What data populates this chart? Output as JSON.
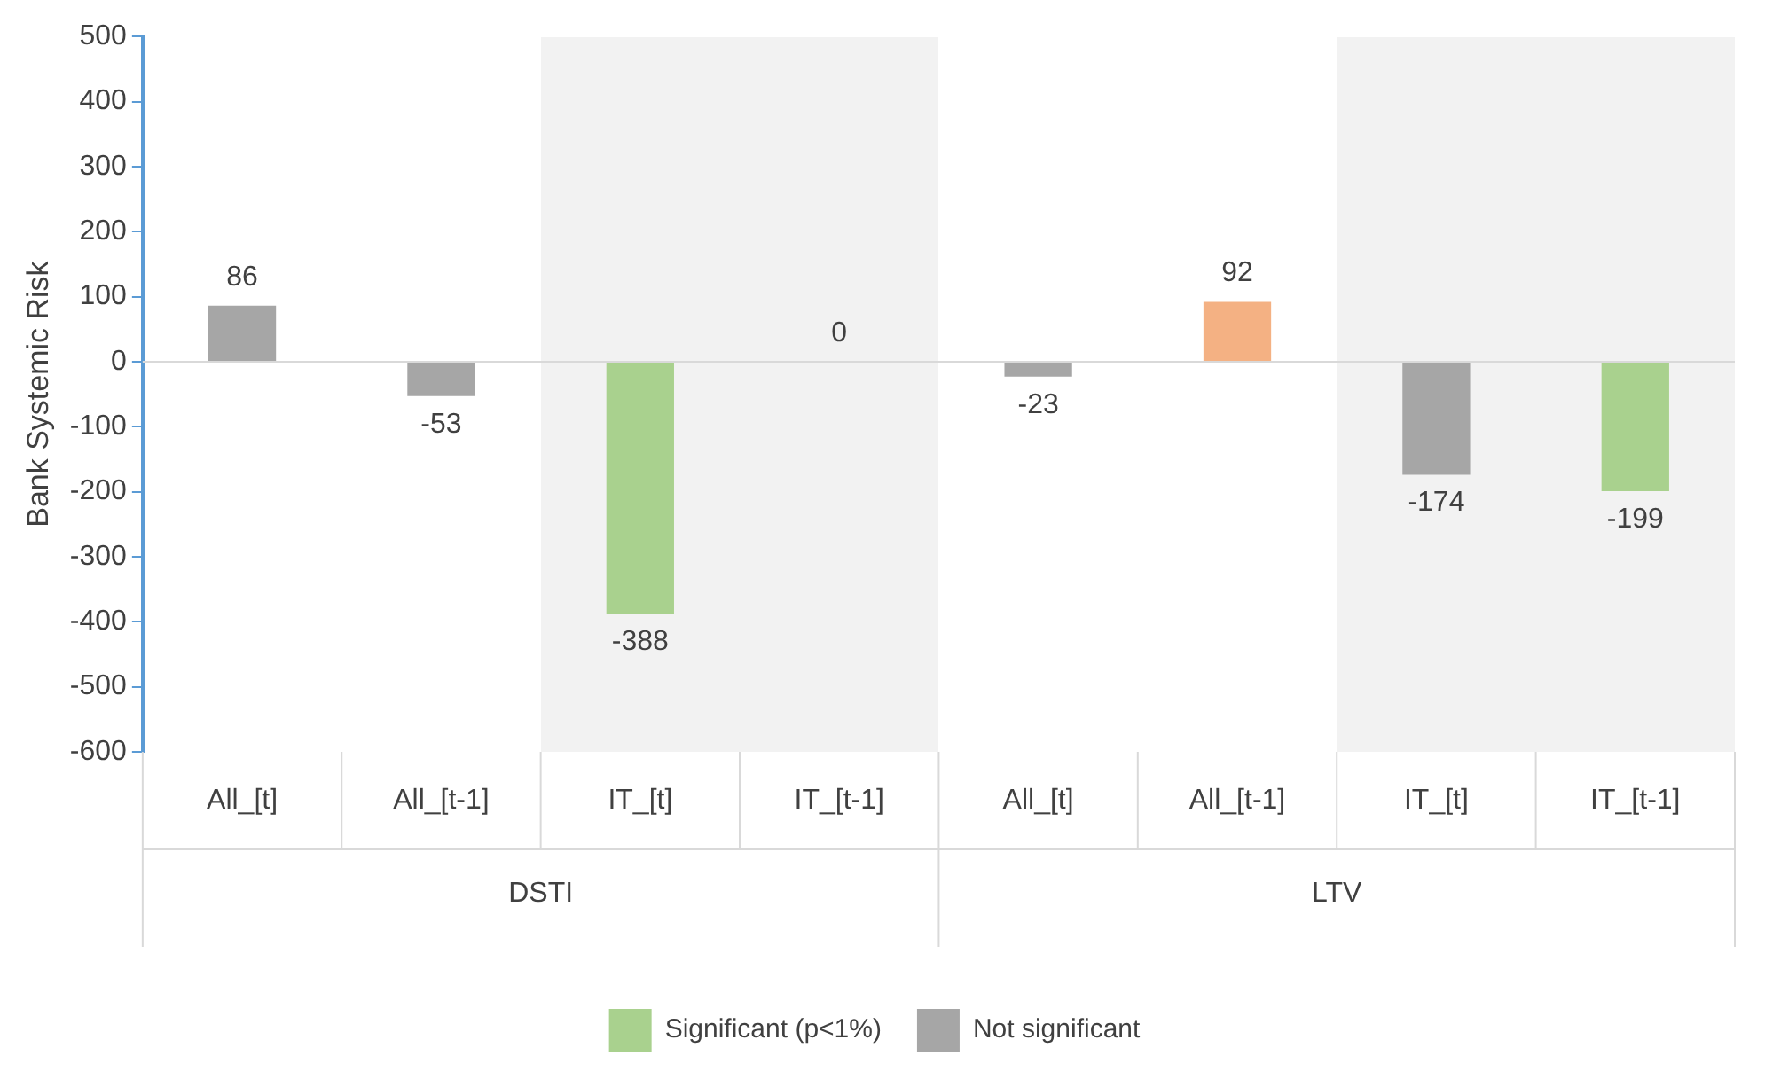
{
  "chart_data": {
    "type": "bar",
    "ylabel": "Bank Systemic Risk",
    "categories": [
      "All_[t]",
      "All_[t-1]",
      "IT_[t]",
      "IT_[t-1]",
      "All_[t]",
      "All_[t-1]",
      "IT_[t]",
      "IT_[t-1]"
    ],
    "series": [
      {
        "name": "Significant (p<1%)",
        "color": "#a9d18e",
        "colors": [
          "#a9d18e",
          "#a9d18e",
          "#a9d18e",
          "#a9d18e",
          "#f4b183",
          "#f4b183",
          "#a9d18e",
          "#a9d18e"
        ],
        "values": [
          null,
          null,
          -388,
          null,
          null,
          92,
          null,
          -199
        ]
      },
      {
        "name": "Not significant",
        "color": "#a6a6a6",
        "values": [
          86,
          -53,
          null,
          0,
          -23,
          null,
          -174,
          null
        ]
      }
    ],
    "stacked": true,
    "ylim": [
      -600,
      500
    ],
    "yticks": [
      -600,
      -500,
      -400,
      -300,
      -200,
      -100,
      0,
      100,
      200,
      300,
      400,
      500
    ],
    "legend": "bottom",
    "data_labels": true,
    "annotations": [
      "DSTI",
      "LTV"
    ]
  }
}
